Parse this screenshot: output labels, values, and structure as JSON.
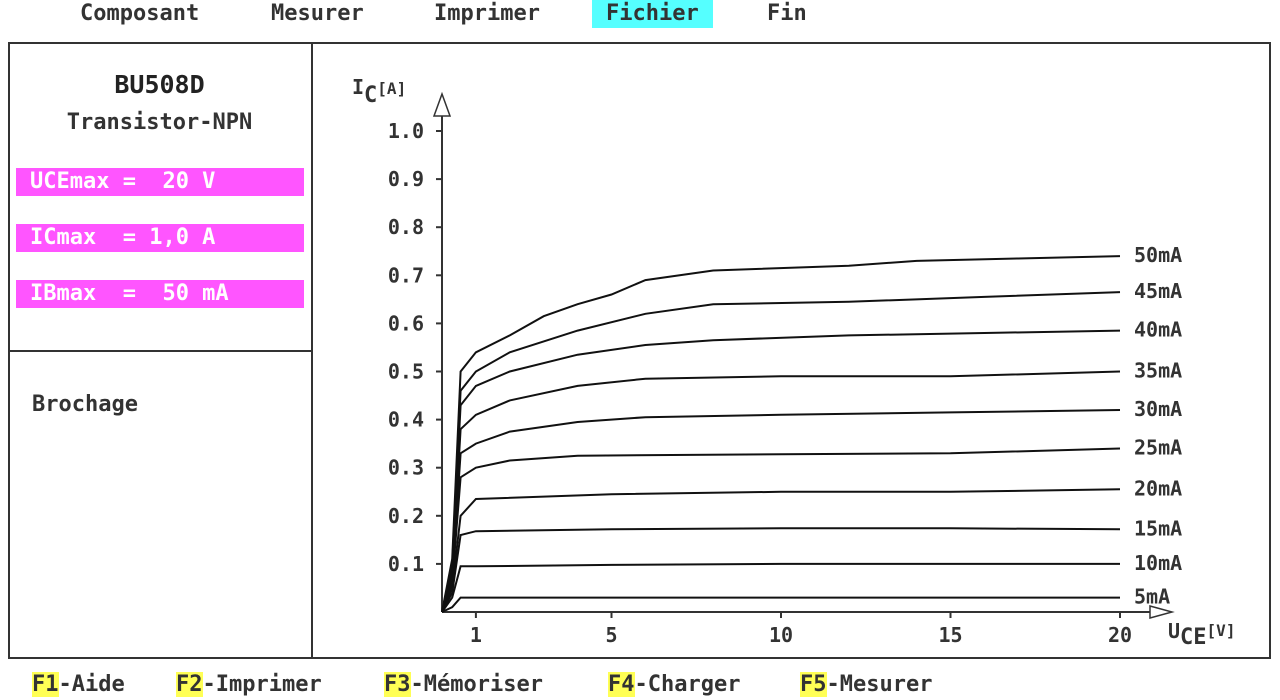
{
  "menu": {
    "items": [
      {
        "label": "Composant",
        "active": false
      },
      {
        "label": "Mesurer",
        "active": false
      },
      {
        "label": "Imprimer",
        "active": false
      },
      {
        "label": "Fichier",
        "active": true
      },
      {
        "label": "Fin",
        "active": false
      }
    ],
    "active_color": "#55ffff"
  },
  "component": {
    "name": "BU508D",
    "type": "Transistor-NPN",
    "specs": [
      "UCEmax =  20 V",
      "ICmax  = 1,0 A",
      "IBmax  =  50 mA"
    ],
    "spec_color": "#ff55ff",
    "pinout_label": "Brochage"
  },
  "chart_data": {
    "type": "line",
    "ylabel_main": "I",
    "ylabel_sub": "C",
    "ylabel_unit": "[A]",
    "xlabel_main": "U",
    "xlabel_sub": "CE",
    "xlabel_unit": "[V]",
    "xlim": [
      0,
      20.5
    ],
    "ylim": [
      0,
      1.0
    ],
    "x_ticks": [
      1,
      5,
      10,
      15,
      20
    ],
    "y_ticks": [
      0.1,
      0.2,
      0.3,
      0.4,
      0.5,
      0.6,
      0.7,
      0.8,
      0.9,
      1.0
    ],
    "y_tick_labels": [
      "0.1",
      "0.2",
      "0.3",
      "0.4",
      "0.5",
      "0.6",
      "0.7",
      "0.8",
      "0.9",
      "1.0"
    ],
    "x_tick_labels": [
      "1",
      "5",
      "10",
      "15",
      "20"
    ],
    "series": [
      {
        "name": "5mA",
        "points": [
          [
            0,
            0
          ],
          [
            0.3,
            0.01
          ],
          [
            0.55,
            0.03
          ],
          [
            1,
            0.03
          ],
          [
            5,
            0.03
          ],
          [
            10,
            0.03
          ],
          [
            15,
            0.03
          ],
          [
            20,
            0.03
          ]
        ]
      },
      {
        "name": "10mA",
        "points": [
          [
            0,
            0
          ],
          [
            0.3,
            0.03
          ],
          [
            0.55,
            0.095
          ],
          [
            1,
            0.095
          ],
          [
            5,
            0.098
          ],
          [
            10,
            0.1
          ],
          [
            15,
            0.1
          ],
          [
            20,
            0.1
          ]
        ]
      },
      {
        "name": "15mA",
        "points": [
          [
            0,
            0
          ],
          [
            0.3,
            0.04
          ],
          [
            0.55,
            0.16
          ],
          [
            1,
            0.168
          ],
          [
            5,
            0.172
          ],
          [
            10,
            0.174
          ],
          [
            15,
            0.174
          ],
          [
            20,
            0.172
          ]
        ]
      },
      {
        "name": "20mA",
        "points": [
          [
            0,
            0
          ],
          [
            0.3,
            0.05
          ],
          [
            0.55,
            0.2
          ],
          [
            1,
            0.235
          ],
          [
            5,
            0.245
          ],
          [
            10,
            0.25
          ],
          [
            15,
            0.25
          ],
          [
            20,
            0.255
          ]
        ]
      },
      {
        "name": "25mA",
        "points": [
          [
            0,
            0
          ],
          [
            0.3,
            0.06
          ],
          [
            0.55,
            0.28
          ],
          [
            1,
            0.3
          ],
          [
            2,
            0.315
          ],
          [
            4,
            0.325
          ],
          [
            10,
            0.328
          ],
          [
            15,
            0.33
          ],
          [
            20,
            0.34
          ]
        ]
      },
      {
        "name": "30mA",
        "points": [
          [
            0,
            0
          ],
          [
            0.3,
            0.07
          ],
          [
            0.55,
            0.33
          ],
          [
            1,
            0.35
          ],
          [
            2,
            0.375
          ],
          [
            4,
            0.395
          ],
          [
            6,
            0.405
          ],
          [
            10,
            0.41
          ],
          [
            15,
            0.415
          ],
          [
            20,
            0.42
          ]
        ]
      },
      {
        "name": "35mA",
        "points": [
          [
            0,
            0
          ],
          [
            0.3,
            0.08
          ],
          [
            0.55,
            0.38
          ],
          [
            1,
            0.41
          ],
          [
            2,
            0.44
          ],
          [
            4,
            0.47
          ],
          [
            6,
            0.485
          ],
          [
            10,
            0.49
          ],
          [
            15,
            0.49
          ],
          [
            20,
            0.5
          ]
        ]
      },
      {
        "name": "40mA",
        "points": [
          [
            0,
            0
          ],
          [
            0.3,
            0.09
          ],
          [
            0.55,
            0.43
          ],
          [
            1,
            0.47
          ],
          [
            2,
            0.5
          ],
          [
            4,
            0.535
          ],
          [
            6,
            0.555
          ],
          [
            8,
            0.565
          ],
          [
            12,
            0.575
          ],
          [
            16,
            0.58
          ],
          [
            20,
            0.585
          ]
        ]
      },
      {
        "name": "45mA",
        "points": [
          [
            0,
            0
          ],
          [
            0.3,
            0.1
          ],
          [
            0.55,
            0.46
          ],
          [
            1,
            0.5
          ],
          [
            2,
            0.54
          ],
          [
            4,
            0.585
          ],
          [
            6,
            0.62
          ],
          [
            8,
            0.64
          ],
          [
            12,
            0.645
          ],
          [
            16,
            0.655
          ],
          [
            20,
            0.665
          ]
        ]
      },
      {
        "name": "50mA",
        "points": [
          [
            0,
            0
          ],
          [
            0.3,
            0.11
          ],
          [
            0.55,
            0.5
          ],
          [
            1,
            0.54
          ],
          [
            2,
            0.575
          ],
          [
            3,
            0.615
          ],
          [
            4,
            0.64
          ],
          [
            5,
            0.66
          ],
          [
            6,
            0.69
          ],
          [
            8,
            0.71
          ],
          [
            12,
            0.72
          ],
          [
            14,
            0.73
          ],
          [
            17,
            0.735
          ],
          [
            20,
            0.74
          ]
        ]
      }
    ]
  },
  "fkeys": [
    {
      "code": "F1",
      "label": "-Aide"
    },
    {
      "code": "F2",
      "label": "-Imprimer"
    },
    {
      "code": "F3",
      "label": "-Mémoriser"
    },
    {
      "code": "F4",
      "label": "-Charger"
    },
    {
      "code": "F5",
      "label": "-Mesurer"
    }
  ],
  "fkey_color": "#ffff55"
}
